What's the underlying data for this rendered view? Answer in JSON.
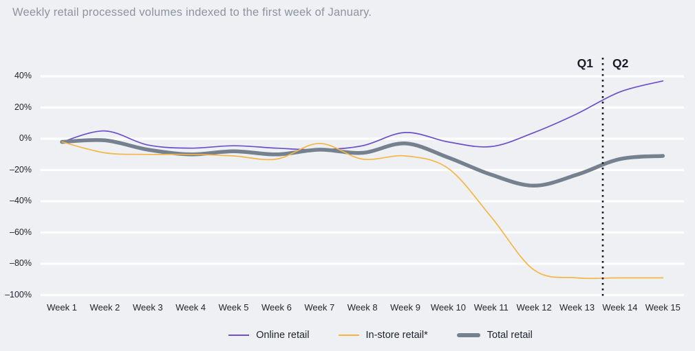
{
  "title": "Weekly retail processed volumes indexed to the first week of January.",
  "quarters": {
    "q1": "Q1",
    "q2": "Q2"
  },
  "colors": {
    "background": "#eef0f4",
    "gridline": "#ffffff",
    "online": "#6b4fc8",
    "in_store": "#f5b544",
    "total": "#75818e",
    "divider": "#15171d",
    "title_text": "#8d93a0",
    "axis_text": "#20242d"
  },
  "chart_data": {
    "type": "line",
    "title": "Weekly retail processed volumes indexed to the first week of January.",
    "categories": [
      "Week 1",
      "Week 2",
      "Week 3",
      "Week 4",
      "Week 5",
      "Week 6",
      "Week 7",
      "Week 8",
      "Week 9",
      "Week 10",
      "Week 11",
      "Week 12",
      "Week 13",
      "Week 14",
      "Week 15"
    ],
    "y_ticks": [
      {
        "value": 40,
        "label": "40%"
      },
      {
        "value": 20,
        "label": "20%"
      },
      {
        "value": 0,
        "label": "0%"
      },
      {
        "value": -20,
        "label": "–20%"
      },
      {
        "value": -40,
        "label": "–40%"
      },
      {
        "value": -60,
        "label": "–60%"
      },
      {
        "value": -80,
        "label": "–80%"
      },
      {
        "value": -100,
        "label": "–100%"
      }
    ],
    "ylim": [
      -100,
      40
    ],
    "grid": "horizontal",
    "legend_position": "bottom",
    "series": [
      {
        "key": "online",
        "name": "Online retail",
        "values": [
          -2,
          5,
          -4,
          -6,
          -4.5,
          -6,
          -7,
          -4.5,
          4,
          -2,
          -5,
          4,
          16,
          30,
          37
        ]
      },
      {
        "key": "in_store",
        "name": "In-store retail*",
        "values": [
          -2,
          -9,
          -10,
          -10,
          -11,
          -13,
          -3,
          -13,
          -11,
          -19,
          -50,
          -84,
          -89,
          -89,
          -89
        ]
      },
      {
        "key": "total",
        "name": "Total retail",
        "values": [
          -2,
          -1,
          -7,
          -10,
          -8,
          -10,
          -7,
          -9,
          -3,
          -12,
          -23,
          -30,
          -23,
          -13,
          -11
        ]
      }
    ],
    "annotations": {
      "quarter_divider_week": 13.6
    }
  }
}
